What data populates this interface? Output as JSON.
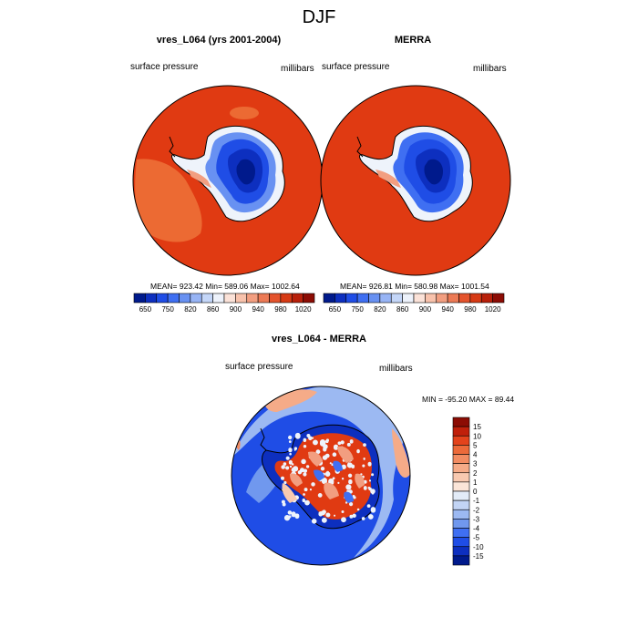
{
  "figure": {
    "title": "DJF"
  },
  "chart_data": [
    {
      "type": "heatmap",
      "title": "vres_L064 (yrs 2001-2004)",
      "left_string": "surface pressure",
      "right_string": "millibars",
      "stats": "MEAN= 923.42  Min= 589.06  Max= 1002.64",
      "projection": "south-polar stereographic",
      "colorbar": {
        "orientation": "horizontal",
        "tick_labels": [
          "650",
          "750",
          "820",
          "860",
          "900",
          "940",
          "980",
          "1020"
        ],
        "colors": [
          "#001a8c",
          "#0d2fbf",
          "#1f4de6",
          "#3f6ff2",
          "#6891f2",
          "#97b4f5",
          "#c4d6f8",
          "#edf2fb",
          "#fbe2d8",
          "#f8c2ac",
          "#f29e80",
          "#ec7a55",
          "#e4532c",
          "#d73a14",
          "#b8200a",
          "#8c0c04"
        ]
      },
      "colors": {
        "ocean": "#e03a12",
        "ocean_light": "#ec6a33",
        "interior": "#001a8c",
        "coast": "#eef3fb"
      }
    },
    {
      "type": "heatmap",
      "title": "MERRA",
      "left_string": "surface pressure",
      "right_string": "millibars",
      "stats": "MEAN= 926.81  Min= 580.98  Max= 1001.54",
      "projection": "south-polar stereographic",
      "colorbar": {
        "orientation": "horizontal",
        "tick_labels": [
          "650",
          "750",
          "820",
          "860",
          "900",
          "940",
          "980",
          "1020"
        ],
        "colors": [
          "#001a8c",
          "#0d2fbf",
          "#1f4de6",
          "#3f6ff2",
          "#6891f2",
          "#97b4f5",
          "#c4d6f8",
          "#edf2fb",
          "#fbe2d8",
          "#f8c2ac",
          "#f29e80",
          "#ec7a55",
          "#e4532c",
          "#d73a14",
          "#b8200a",
          "#8c0c04"
        ]
      },
      "colors": {
        "ocean": "#e03a12",
        "interior": "#001a8c",
        "coast": "#eef3fb"
      }
    },
    {
      "type": "heatmap",
      "title": "vres_L064 - MERRA",
      "left_string": "surface pressure",
      "right_string": "millibars",
      "stats": "MIN = -95.20 MAX =  89.44",
      "projection": "south-polar stereographic",
      "colorbar": {
        "orientation": "vertical",
        "tick_labels": [
          "15",
          "10",
          "5",
          "4",
          "3",
          "2",
          "1",
          "0",
          "-1",
          "-2",
          "-3",
          "-4",
          "-5",
          "-10",
          "-15"
        ],
        "colors": [
          "#8c0c04",
          "#c0200b",
          "#e3431c",
          "#ec6a3a",
          "#f28c62",
          "#f5ab88",
          "#f8c9b0",
          "#fbe5d8",
          "#e3ecf8",
          "#c2d4f5",
          "#9cb9f2",
          "#7098ee",
          "#3f6ff2",
          "#1f4de6",
          "#0d2fbf",
          "#001a8c"
        ]
      },
      "colors": {
        "positive": "#e03a12",
        "negative": "#1f4de6",
        "light_negative": "#9cb9f2"
      }
    }
  ]
}
